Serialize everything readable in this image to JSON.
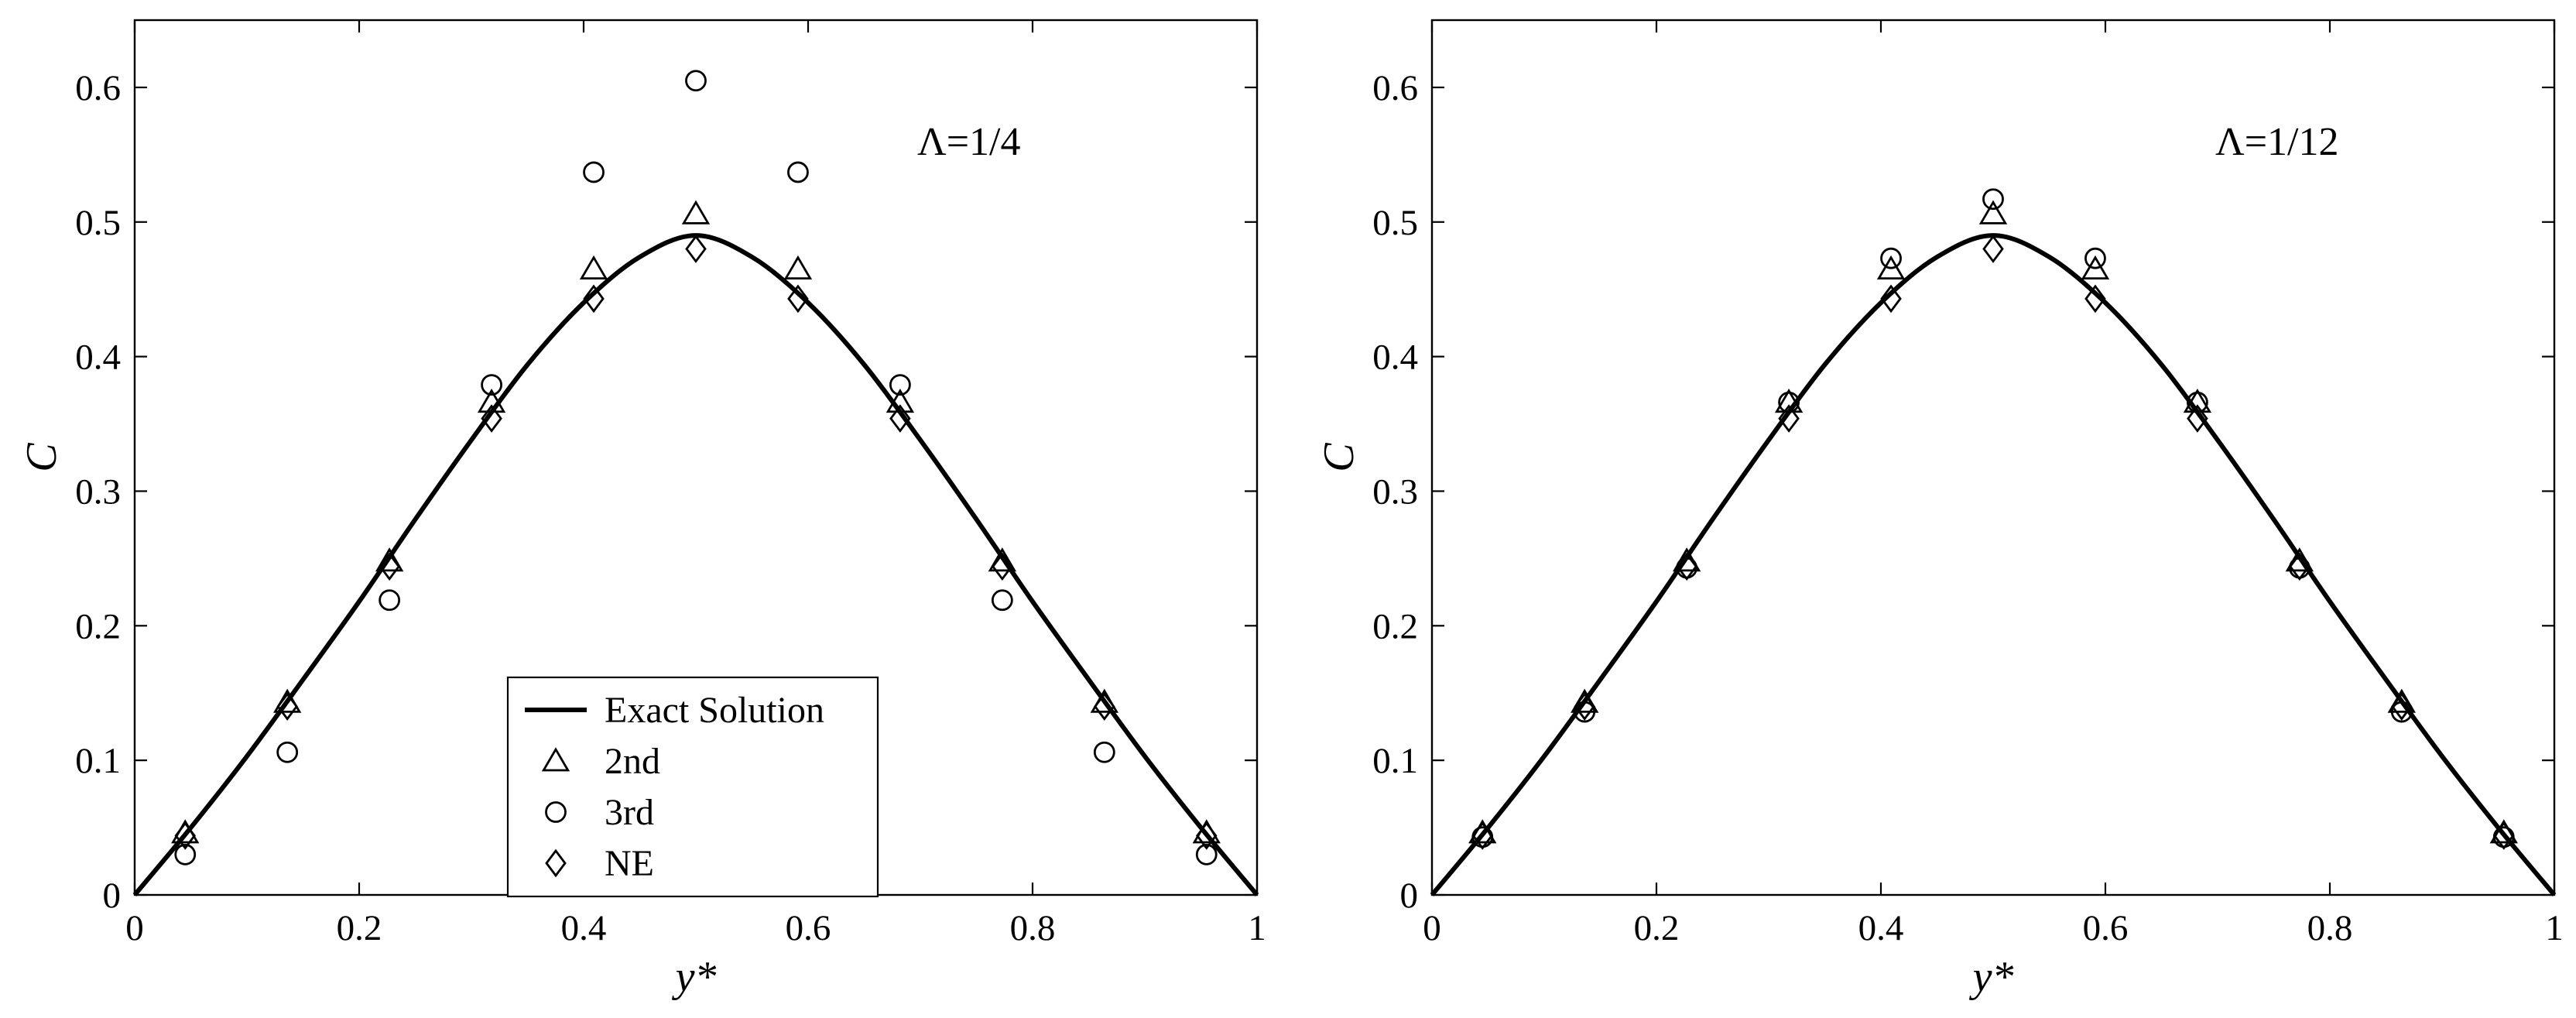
{
  "chart_data": [
    {
      "type": "scatter",
      "xlabel": "y*",
      "ylabel": "C",
      "annotation": "Λ=1/4",
      "xlim": [
        0,
        1
      ],
      "ylim": [
        0,
        0.65
      ],
      "xticks": [
        0,
        0.2,
        0.4,
        0.6,
        0.8,
        1
      ],
      "xtick_labels": [
        "0",
        "0.2",
        "0.4",
        "0.6",
        "0.8",
        "1"
      ],
      "yticks": [
        0,
        0.1,
        0.2,
        0.3,
        0.4,
        0.5,
        0.6
      ],
      "ytick_labels": [
        "0",
        "0.1",
        "0.2",
        "0.3",
        "0.4",
        "0.5",
        "0.6"
      ],
      "grid": false,
      "legend": "lower-center",
      "series": [
        {
          "name": "Exact Solution",
          "style": "line",
          "x": [
            0,
            0.05,
            0.1,
            0.15,
            0.2,
            0.25,
            0.3,
            0.35,
            0.4,
            0.45,
            0.5,
            0.55,
            0.6,
            0.65,
            0.7,
            0.75,
            0.8,
            0.85,
            0.9,
            0.95,
            1
          ],
          "y": [
            0,
            0.05,
            0.103,
            0.16,
            0.218,
            0.279,
            0.338,
            0.394,
            0.44,
            0.474,
            0.49,
            0.474,
            0.44,
            0.394,
            0.338,
            0.279,
            0.218,
            0.16,
            0.103,
            0.05,
            0
          ]
        },
        {
          "name": "2nd",
          "marker": "triangle",
          "x": [
            0.045,
            0.136,
            0.227,
            0.318,
            0.409,
            0.5,
            0.591,
            0.682,
            0.773,
            0.864,
            0.955
          ],
          "y": [
            0.046,
            0.143,
            0.248,
            0.366,
            0.465,
            0.506,
            0.465,
            0.366,
            0.248,
            0.143,
            0.046
          ]
        },
        {
          "name": "3rd",
          "marker": "circle",
          "x": [
            0.045,
            0.136,
            0.227,
            0.318,
            0.409,
            0.5,
            0.591,
            0.682,
            0.773,
            0.864,
            0.955
          ],
          "y": [
            0.03,
            0.106,
            0.219,
            0.379,
            0.537,
            0.605,
            0.537,
            0.379,
            0.219,
            0.106,
            0.03
          ]
        },
        {
          "name": "NE",
          "marker": "diamond",
          "x": [
            0.045,
            0.136,
            0.227,
            0.318,
            0.409,
            0.5,
            0.591,
            0.682,
            0.773,
            0.864,
            0.955
          ],
          "y": [
            0.044,
            0.14,
            0.244,
            0.354,
            0.443,
            0.48,
            0.443,
            0.354,
            0.244,
            0.14,
            0.044
          ]
        }
      ]
    },
    {
      "type": "scatter",
      "xlabel": "y*",
      "ylabel": "C",
      "annotation": "Λ=1/12",
      "xlim": [
        0,
        1
      ],
      "ylim": [
        0,
        0.65
      ],
      "xticks": [
        0,
        0.2,
        0.4,
        0.6,
        0.8,
        1
      ],
      "xtick_labels": [
        "0",
        "0.2",
        "0.4",
        "0.6",
        "0.8",
        "1"
      ],
      "yticks": [
        0,
        0.1,
        0.2,
        0.3,
        0.4,
        0.5,
        0.6
      ],
      "ytick_labels": [
        "0",
        "0.1",
        "0.2",
        "0.3",
        "0.4",
        "0.5",
        "0.6"
      ],
      "grid": false,
      "series": [
        {
          "style": "line",
          "x": [
            0,
            0.05,
            0.1,
            0.15,
            0.2,
            0.25,
            0.3,
            0.35,
            0.4,
            0.45,
            0.5,
            0.55,
            0.6,
            0.65,
            0.7,
            0.75,
            0.8,
            0.85,
            0.9,
            0.95,
            1
          ],
          "y": [
            0,
            0.05,
            0.103,
            0.16,
            0.218,
            0.279,
            0.338,
            0.394,
            0.44,
            0.474,
            0.49,
            0.474,
            0.44,
            0.394,
            0.338,
            0.279,
            0.218,
            0.16,
            0.103,
            0.05,
            0
          ]
        },
        {
          "marker": "triangle",
          "x": [
            0.045,
            0.136,
            0.227,
            0.318,
            0.409,
            0.5,
            0.591,
            0.682,
            0.773,
            0.864,
            0.955
          ],
          "y": [
            0.046,
            0.143,
            0.248,
            0.366,
            0.465,
            0.506,
            0.465,
            0.366,
            0.248,
            0.143,
            0.046
          ]
        },
        {
          "marker": "circle",
          "x": [
            0.045,
            0.136,
            0.227,
            0.318,
            0.409,
            0.5,
            0.591,
            0.682,
            0.773,
            0.864,
            0.955
          ],
          "y": [
            0.043,
            0.136,
            0.243,
            0.366,
            0.473,
            0.517,
            0.473,
            0.366,
            0.243,
            0.136,
            0.043
          ]
        },
        {
          "marker": "diamond",
          "x": [
            0.045,
            0.136,
            0.227,
            0.318,
            0.409,
            0.5,
            0.591,
            0.682,
            0.773,
            0.864,
            0.955
          ],
          "y": [
            0.044,
            0.14,
            0.244,
            0.354,
            0.443,
            0.48,
            0.443,
            0.354,
            0.244,
            0.14,
            0.044
          ]
        }
      ]
    }
  ]
}
